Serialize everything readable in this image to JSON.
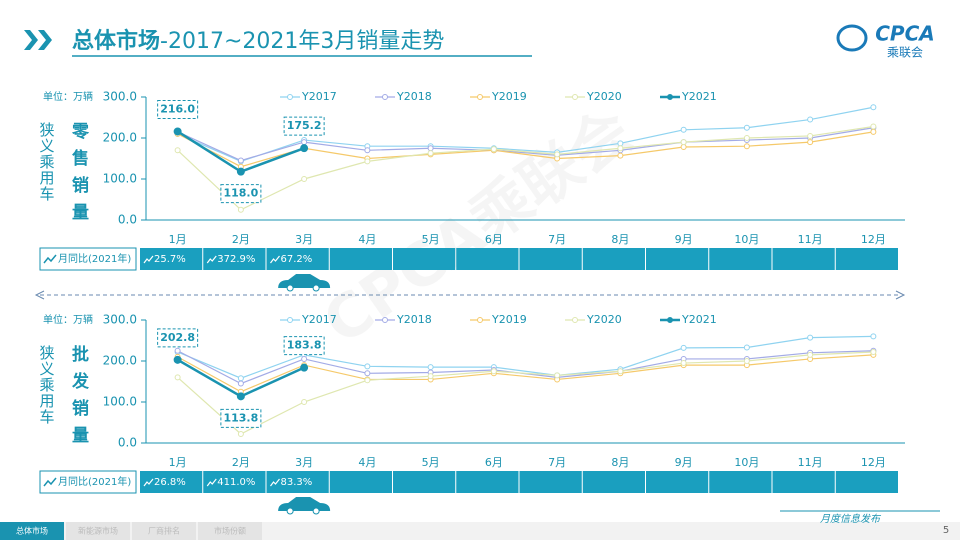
{
  "header": {
    "title_bold": "总体市场",
    "title_rest": "-2017~2021年3月销量走势",
    "logo": "CPCA",
    "logo_sub": "乘联会"
  },
  "watermark": "CPCA乘联会",
  "chart_data": [
    {
      "type": "line",
      "side_label": "狭义乘用车",
      "panel_label": "零售销量",
      "unit_label": "单位：万辆",
      "categories": [
        "1月",
        "2月",
        "3月",
        "4月",
        "5月",
        "6月",
        "7月",
        "8月",
        "9月",
        "10月",
        "11月",
        "12月"
      ],
      "ylim": [
        0,
        300
      ],
      "yticks": [
        {
          "value": 0,
          "label": "0.0"
        },
        {
          "value": 100,
          "label": "100.0"
        },
        {
          "value": 200,
          "label": "200.0"
        },
        {
          "value": 300,
          "label": "300.0"
        }
      ],
      "series": [
        {
          "name": "Y2017",
          "color": "#8fd3f0",
          "values": [
            210,
            143,
            195,
            180,
            180,
            175,
            165,
            187,
            220,
            225,
            245,
            275
          ]
        },
        {
          "name": "Y2018",
          "color": "#a3abe6",
          "values": [
            215,
            145,
            190,
            170,
            175,
            170,
            158,
            170,
            190,
            195,
            200,
            225
          ]
        },
        {
          "name": "Y2019",
          "color": "#f5c96a",
          "values": [
            210,
            130,
            175,
            150,
            160,
            170,
            150,
            157,
            178,
            180,
            190,
            215
          ]
        },
        {
          "name": "Y2020",
          "color": "#dfe7b0",
          "values": [
            170,
            25,
            100,
            143,
            163,
            173,
            160,
            175,
            190,
            200,
            205,
            228
          ]
        },
        {
          "name": "Y2021",
          "color": "#1a93b0",
          "values": [
            216.0,
            118.0,
            175.2,
            null,
            null,
            null,
            null,
            null,
            null,
            null,
            null,
            null
          ],
          "value_labels": [
            "216.0",
            "118.0",
            "175.2",
            null,
            null,
            null,
            null,
            null,
            null,
            null,
            null,
            null
          ]
        }
      ],
      "yoy": {
        "label": "月同比(2021年)",
        "values": [
          25.7,
          372.9,
          67.2
        ],
        "value_labels": [
          "25.7%",
          "372.9%",
          "67.2%"
        ]
      }
    },
    {
      "type": "line",
      "side_label": "狭义乘用车",
      "panel_label": "批发销量",
      "unit_label": "单位：万辆",
      "categories": [
        "1月",
        "2月",
        "3月",
        "4月",
        "5月",
        "6月",
        "7月",
        "8月",
        "9月",
        "10月",
        "11月",
        "12月"
      ],
      "ylim": [
        0,
        300
      ],
      "yticks": [
        {
          "value": 0,
          "label": "0.0"
        },
        {
          "value": 100,
          "label": "100.0"
        },
        {
          "value": 200,
          "label": "200.0"
        },
        {
          "value": 300,
          "label": "300.0"
        }
      ],
      "series": [
        {
          "name": "Y2017",
          "color": "#8fd3f0",
          "values": [
            222,
            158,
            215,
            187,
            185,
            185,
            165,
            180,
            232,
            233,
            257,
            260
          ]
        },
        {
          "name": "Y2018",
          "color": "#a3abe6",
          "values": [
            225,
            145,
            205,
            170,
            172,
            178,
            160,
            175,
            205,
            205,
            220,
            225
          ]
        },
        {
          "name": "Y2019",
          "color": "#f5c96a",
          "values": [
            210,
            125,
            190,
            155,
            155,
            170,
            155,
            170,
            190,
            190,
            205,
            215
          ]
        },
        {
          "name": "Y2020",
          "color": "#dfe7b0",
          "values": [
            160,
            22,
            100,
            153,
            163,
            175,
            165,
            175,
            195,
            200,
            215,
            222
          ]
        },
        {
          "name": "Y2021",
          "color": "#1a93b0",
          "values": [
            202.8,
            113.8,
            183.8,
            null,
            null,
            null,
            null,
            null,
            null,
            null,
            null,
            null
          ],
          "value_labels": [
            "202.8",
            "113.8",
            "183.8",
            null,
            null,
            null,
            null,
            null,
            null,
            null,
            null,
            null
          ]
        }
      ],
      "yoy": {
        "label": "月同比(2021年)",
        "values": [
          26.8,
          411.0,
          83.3
        ],
        "value_labels": [
          "26.8%",
          "411.0%",
          "83.3%"
        ]
      }
    }
  ],
  "footer": {
    "tabs": [
      "总体市场",
      "新能源市场",
      "厂商排名",
      "市场份额"
    ],
    "release": "月度信息发布",
    "page": "5"
  }
}
